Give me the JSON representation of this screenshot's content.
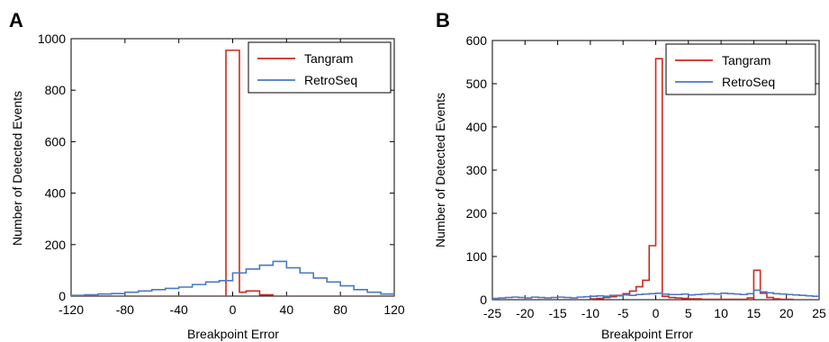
{
  "chart_data": [
    {
      "panel": "A",
      "type": "line",
      "xlabel": "Breakpoint Error",
      "ylabel": "Number of Detected Events",
      "xlim": [
        -120,
        120
      ],
      "ylim": [
        0,
        1000
      ],
      "xticks": [
        -120,
        -80,
        -40,
        0,
        40,
        80,
        120
      ],
      "yticks": [
        0,
        200,
        400,
        600,
        800,
        1000
      ],
      "grid": false,
      "legend_position": "top-right",
      "series": [
        {
          "name": "Tangram",
          "color": "#cc2a1e",
          "x": [
            -120,
            -110,
            -100,
            -90,
            -80,
            -70,
            -60,
            -50,
            -40,
            -30,
            -20,
            -10,
            -5,
            5,
            10,
            20,
            30,
            40,
            50,
            60,
            70,
            80,
            90,
            100,
            110,
            120
          ],
          "y": [
            0,
            0,
            0,
            0,
            0,
            0,
            0,
            0,
            0,
            0,
            0,
            0,
            955,
            15,
            20,
            5,
            0,
            0,
            0,
            0,
            0,
            0,
            0,
            0,
            0,
            0
          ]
        },
        {
          "name": "RetroSeq",
          "color": "#4a78c4",
          "x": [
            -120,
            -110,
            -100,
            -90,
            -80,
            -70,
            -60,
            -50,
            -40,
            -30,
            -20,
            -10,
            0,
            10,
            20,
            30,
            40,
            50,
            60,
            70,
            80,
            90,
            100,
            110,
            120
          ],
          "y": [
            3,
            5,
            8,
            10,
            15,
            20,
            25,
            30,
            35,
            45,
            55,
            60,
            90,
            105,
            120,
            135,
            110,
            90,
            70,
            55,
            40,
            25,
            15,
            8,
            5
          ]
        }
      ]
    },
    {
      "panel": "B",
      "type": "line",
      "xlabel": "Breakpoint Error",
      "ylabel": "Number of Detected Events",
      "xlim": [
        -25,
        25
      ],
      "ylim": [
        0,
        600
      ],
      "xticks": [
        -25,
        -20,
        -15,
        -10,
        -5,
        0,
        5,
        10,
        15,
        20,
        25
      ],
      "yticks": [
        0,
        100,
        200,
        300,
        400,
        500,
        600
      ],
      "grid": false,
      "legend_position": "top-right",
      "series": [
        {
          "name": "Tangram",
          "color": "#cc2a1e",
          "x": [
            -25,
            -24,
            -23,
            -22,
            -21,
            -20,
            -19,
            -18,
            -17,
            -16,
            -15,
            -14,
            -13,
            -12,
            -11,
            -10,
            -9,
            -8,
            -7,
            -6,
            -5,
            -4,
            -3,
            -2,
            -1,
            0,
            1,
            2,
            3,
            4,
            5,
            6,
            7,
            8,
            9,
            10,
            11,
            12,
            13,
            14,
            15,
            16,
            17,
            18,
            19,
            20,
            21,
            22,
            23,
            24,
            25
          ],
          "y": [
            0,
            0,
            0,
            0,
            0,
            0,
            0,
            0,
            0,
            0,
            0,
            0,
            0,
            0,
            0,
            2,
            3,
            5,
            7,
            10,
            14,
            20,
            30,
            45,
            125,
            558,
            8,
            5,
            4,
            3,
            2,
            2,
            1,
            1,
            1,
            1,
            1,
            1,
            1,
            4,
            68,
            15,
            5,
            2,
            1,
            1,
            0,
            0,
            0,
            0,
            0
          ]
        },
        {
          "name": "RetroSeq",
          "color": "#4a78c4",
          "x": [
            -25,
            -24,
            -23,
            -22,
            -21,
            -20,
            -19,
            -18,
            -17,
            -16,
            -15,
            -14,
            -13,
            -12,
            -11,
            -10,
            -9,
            -8,
            -7,
            -6,
            -5,
            -4,
            -3,
            -2,
            -1,
            0,
            1,
            2,
            3,
            4,
            5,
            6,
            7,
            8,
            9,
            10,
            11,
            12,
            13,
            14,
            15,
            16,
            17,
            18,
            19,
            20,
            21,
            22,
            23,
            24,
            25
          ],
          "y": [
            3,
            4,
            5,
            6,
            5,
            4,
            6,
            5,
            4,
            5,
            6,
            5,
            4,
            6,
            7,
            8,
            9,
            8,
            10,
            9,
            11,
            10,
            12,
            13,
            14,
            15,
            13,
            12,
            12,
            13,
            11,
            12,
            13,
            14,
            13,
            15,
            14,
            13,
            12,
            14,
            22,
            18,
            16,
            14,
            13,
            12,
            11,
            10,
            9,
            8,
            6
          ]
        }
      ]
    }
  ]
}
